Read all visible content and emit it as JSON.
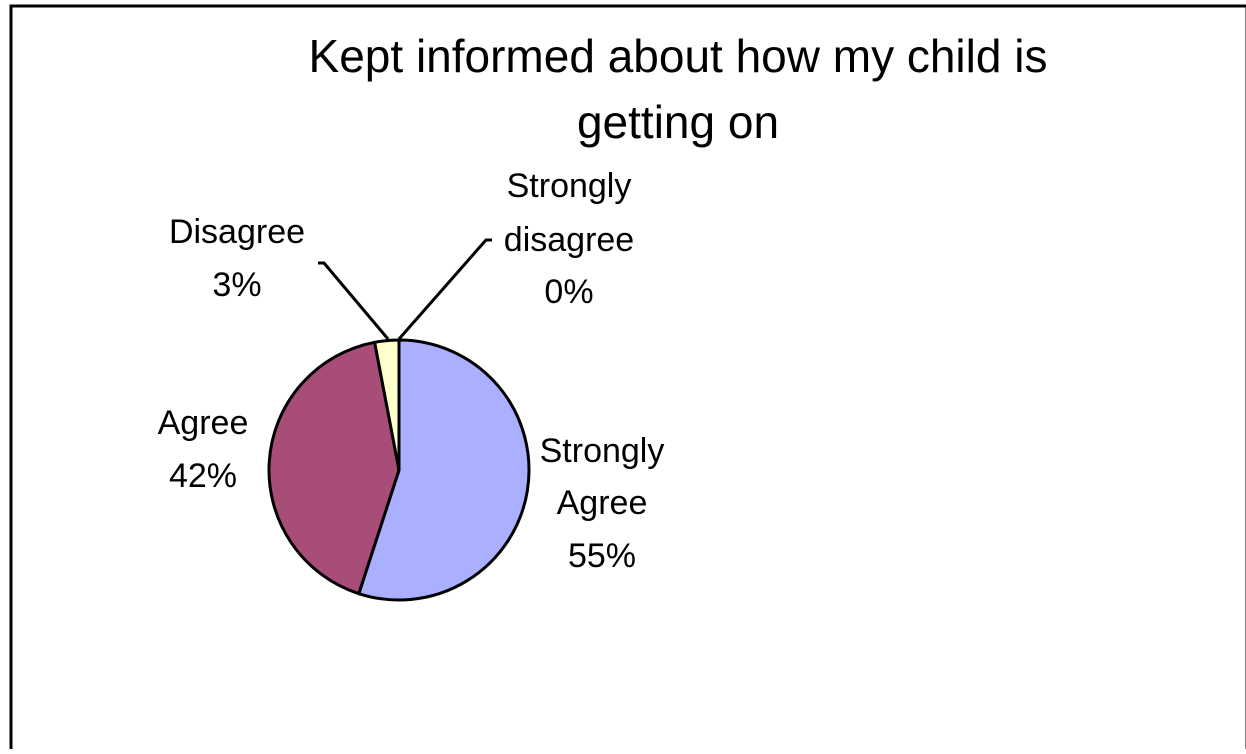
{
  "chart_data": {
    "type": "pie",
    "title_lines": [
      "Kept informed about how my child is",
      "getting on"
    ],
    "slices": [
      {
        "label_lines": [
          "Strongly",
          "Agree"
        ],
        "pct_label": "55%",
        "value": 55,
        "color": "#aab0ff"
      },
      {
        "label_lines": [
          "Agree"
        ],
        "pct_label": "42%",
        "value": 42,
        "color": "#a84c78"
      },
      {
        "label_lines": [
          "Disagree"
        ],
        "pct_label": "3%",
        "value": 3,
        "color": "#ffffcc"
      },
      {
        "label_lines": [
          "Strongly",
          "disagree"
        ],
        "pct_label": "0%",
        "value": 0,
        "color": "#00ffff"
      }
    ],
    "legend": "none"
  }
}
